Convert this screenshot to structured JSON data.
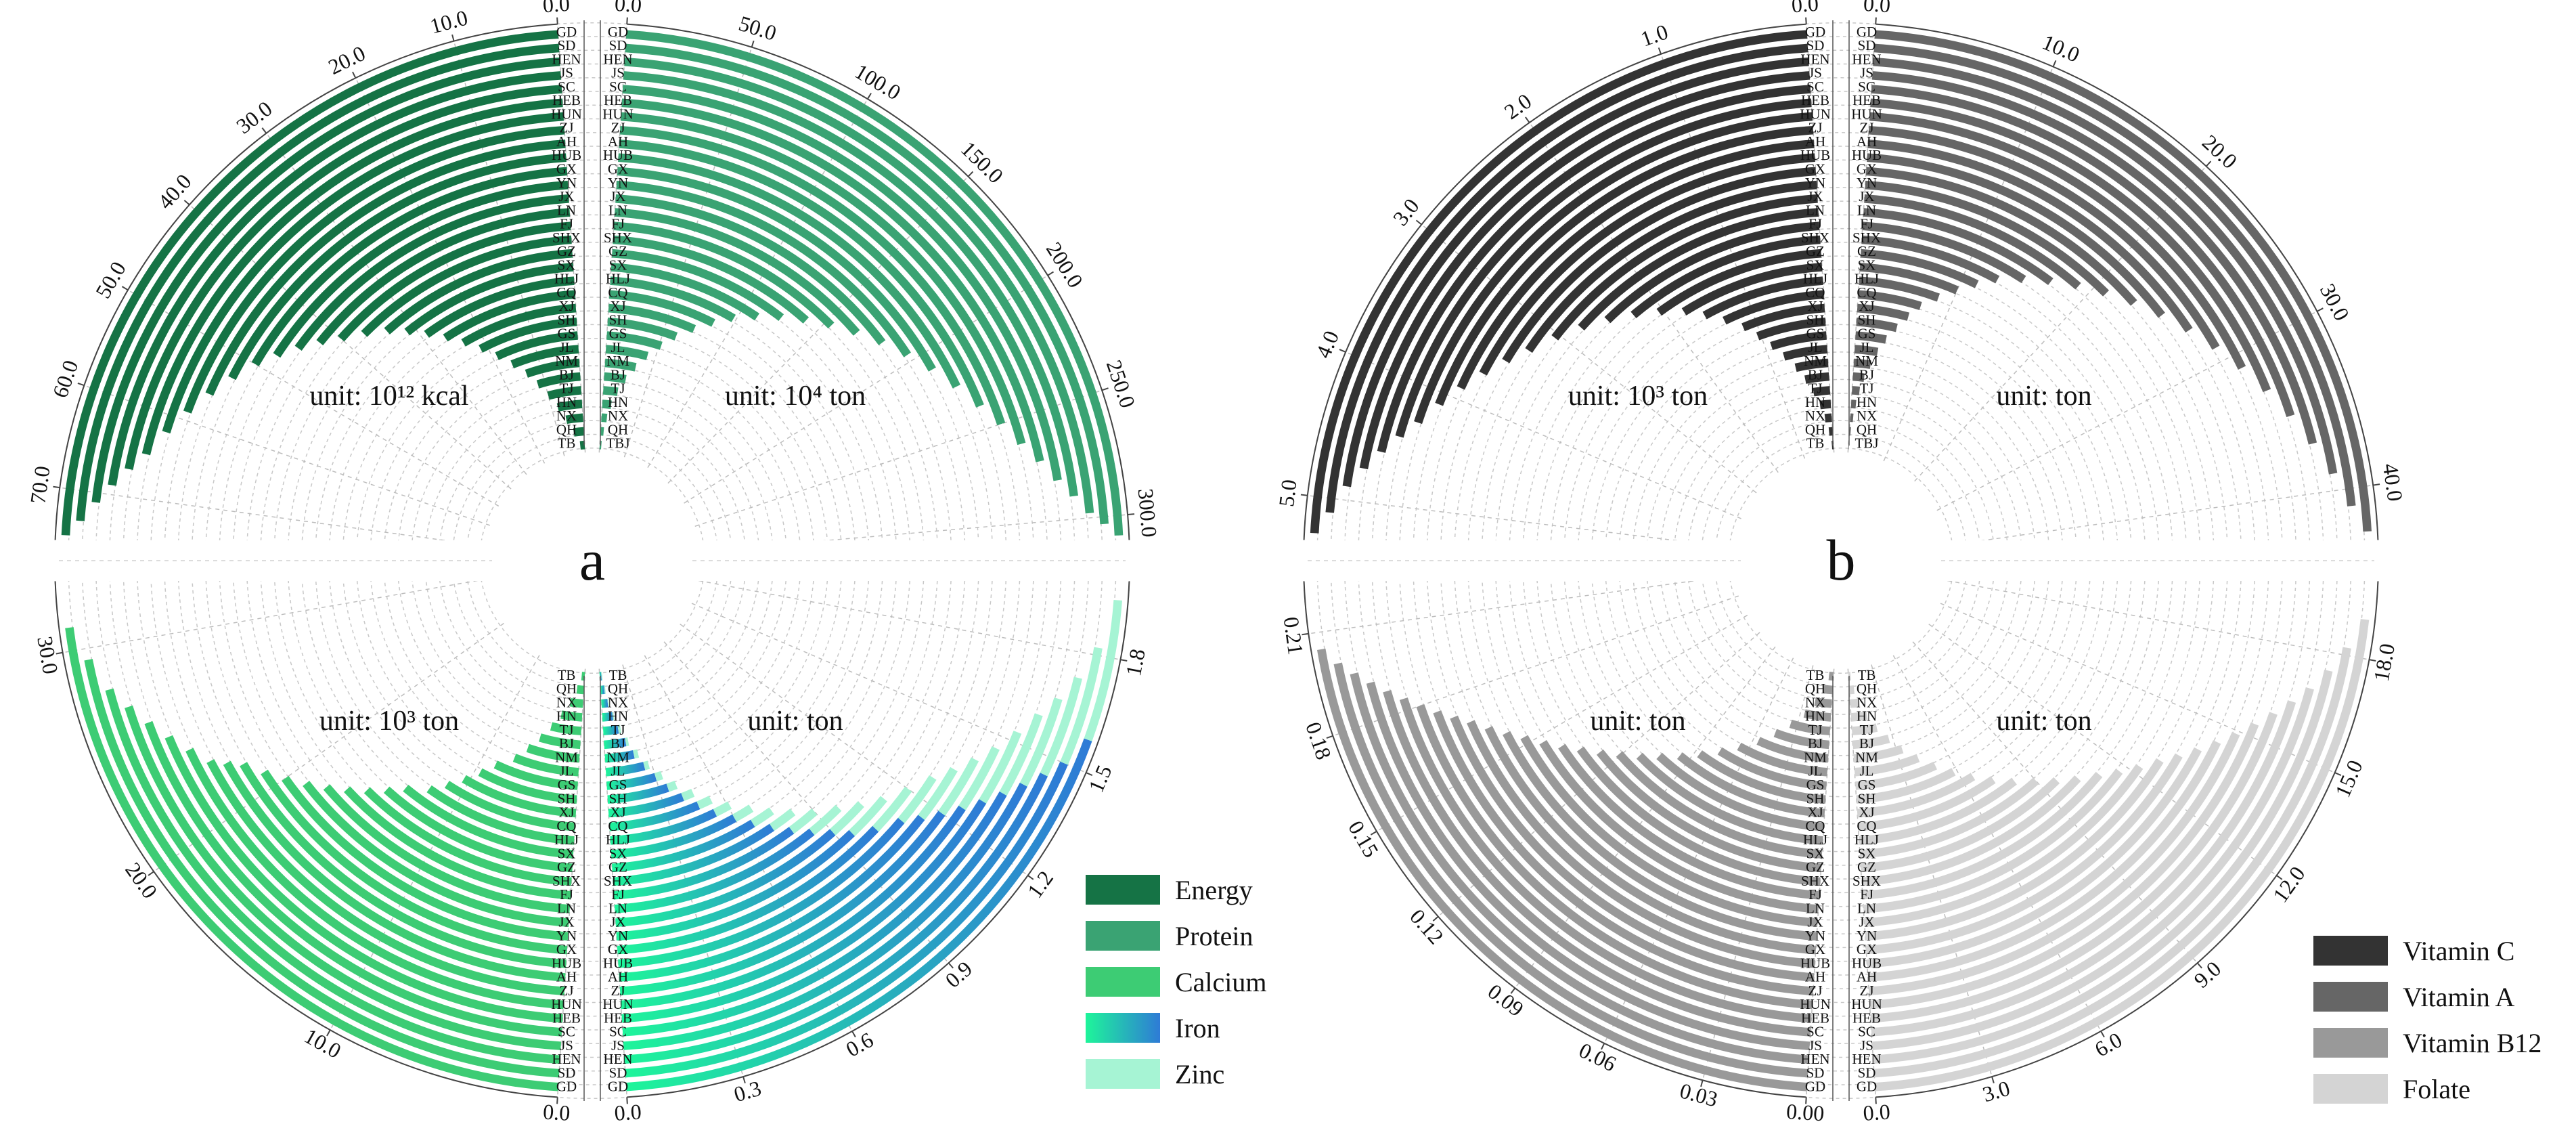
{
  "chart_data": [
    {
      "id": "a",
      "type": "radial-bar",
      "panel_label": "a",
      "provinces": [
        "GD",
        "SD",
        "HEN",
        "JS",
        "SC",
        "HEB",
        "HUN",
        "ZJ",
        "AH",
        "HUB",
        "GX",
        "YN",
        "JX",
        "LN",
        "FJ",
        "SHX",
        "GZ",
        "SX",
        "HLJ",
        "CQ",
        "XJ",
        "SH",
        "GS",
        "JL",
        "NM",
        "BJ",
        "TJ",
        "HN",
        "NX",
        "QH",
        "TB"
      ],
      "provinces_right_upper": [
        "GD",
        "SD",
        "HEN",
        "JS",
        "SC",
        "HEB",
        "HUN",
        "ZJ",
        "AH",
        "HUB",
        "GX",
        "YN",
        "JX",
        "LN",
        "FJ",
        "SHX",
        "GZ",
        "SX",
        "HLJ",
        "CQ",
        "XJ",
        "SH",
        "GS",
        "JL",
        "NM",
        "BJ",
        "TJ",
        "HN",
        "NX",
        "QH",
        "TBJ"
      ],
      "quadrants": [
        {
          "position": "upper-left",
          "nutrient": "Energy",
          "unit": "unit: 10¹² kcal",
          "color": "#157345",
          "max": 75,
          "ticks": [
            "0.0",
            "10.0",
            "20.0",
            "30.0",
            "40.0",
            "50.0",
            "60.0",
            "70.0"
          ],
          "tick_values": [
            0,
            10,
            20,
            30,
            40,
            50,
            60,
            70
          ],
          "values": [
            74.5,
            73,
            71,
            69,
            67,
            65,
            62,
            59,
            56,
            53,
            50,
            47.5,
            45,
            42.5,
            40,
            37,
            34,
            31.5,
            29,
            26.5,
            24,
            21.5,
            19,
            16.5,
            14,
            12,
            10,
            8,
            6,
            4,
            2
          ]
        },
        {
          "position": "upper-right",
          "nutrient": "Protein",
          "unit": "unit: 10⁴ ton",
          "color": "#3aa373",
          "max": 310,
          "ticks": [
            "0.0",
            "50.0",
            "100.0",
            "150.0",
            "200.0",
            "250.0",
            "300.0"
          ],
          "tick_values": [
            0,
            50,
            100,
            150,
            200,
            250,
            300
          ],
          "values": [
            308,
            303,
            298,
            290,
            282,
            272,
            262,
            250,
            238,
            224,
            210,
            196,
            182,
            168,
            154,
            140,
            126,
            112,
            98,
            86,
            74,
            62,
            52,
            42,
            33,
            25,
            18,
            12,
            8,
            5,
            3
          ]
        },
        {
          "position": "lower-left",
          "nutrient": "Calcium",
          "unit": "unit: 10³ ton",
          "color": "#3dcc74",
          "max": 33,
          "ticks": [
            "0.0",
            "10.0",
            "20.0",
            "30.0"
          ],
          "tick_values": [
            0,
            10,
            20,
            30
          ],
          "values": [
            31,
            29.5,
            28,
            27,
            26,
            25,
            24,
            23,
            22.5,
            22,
            21,
            20,
            19,
            18,
            17,
            16,
            15,
            14,
            12.5,
            11.5,
            10.5,
            9.5,
            8.5,
            7,
            6,
            5,
            4,
            3,
            2,
            1.2,
            0.6
          ]
        },
        {
          "position": "lower-right",
          "nutrient": "Iron",
          "unit": "unit: ton",
          "color": "#2e7bd6",
          "max": 2.0,
          "ticks": [
            "0.0",
            "0.3",
            "0.6",
            "0.9",
            "1.2",
            "1.5",
            "1.8"
          ],
          "tick_values": [
            0,
            0.3,
            0.6,
            0.9,
            1.2,
            1.5,
            1.8
          ],
          "values": [
            1.58,
            1.5,
            1.45,
            1.4,
            1.35,
            1.3,
            1.25,
            1.2,
            1.15,
            1.1,
            1.02,
            0.95,
            0.9,
            0.84,
            0.78,
            0.72,
            0.66,
            0.6,
            0.53,
            0.47,
            0.41,
            0.35,
            0.3,
            0.25,
            0.2,
            0.16,
            0.12,
            0.09,
            0.06,
            0.04,
            0.02
          ],
          "overlay": {
            "nutrient": "Zinc",
            "color": "#a6f4d4",
            "values": [
              1.95,
              1.82,
              1.73,
              1.66,
              1.6,
              1.53,
              1.46,
              1.4,
              1.34,
              1.28,
              1.2,
              1.12,
              1.05,
              0.98,
              0.9,
              0.83,
              0.76,
              0.69,
              0.61,
              0.54,
              0.47,
              0.4,
              0.34,
              0.28,
              0.23,
              0.18,
              0.14,
              0.1,
              0.07,
              0.05,
              0.03
            ]
          }
        }
      ],
      "legend": [
        {
          "label": "Energy",
          "color": "#157345"
        },
        {
          "label": "Protein",
          "color": "#3aa373"
        },
        {
          "label": "Calcium",
          "color": "#3dcc74"
        },
        {
          "label": "Iron",
          "color": "#2e7bd6",
          "gradient_from": "#1ef59a"
        },
        {
          "label": "Zinc",
          "color": "#a6f4d4"
        }
      ]
    },
    {
      "id": "b",
      "type": "radial-bar",
      "panel_label": "b",
      "provinces": [
        "GD",
        "SD",
        "HEN",
        "JS",
        "SC",
        "HEB",
        "HUN",
        "ZJ",
        "AH",
        "HUB",
        "GX",
        "YN",
        "JX",
        "LN",
        "FJ",
        "SHX",
        "GZ",
        "SX",
        "HLJ",
        "CQ",
        "XJ",
        "SH",
        "GS",
        "JL",
        "NM",
        "BJ",
        "TJ",
        "HN",
        "NX",
        "QH",
        "TB"
      ],
      "provinces_right_upper": [
        "GD",
        "SD",
        "HEN",
        "JS",
        "SC",
        "HEB",
        "HUN",
        "ZJ",
        "AH",
        "HUB",
        "GX",
        "YN",
        "JX",
        "LN",
        "FJ",
        "SHX",
        "GZ",
        "SX",
        "HLJ",
        "CQ",
        "XJ",
        "SH",
        "GS",
        "JL",
        "NM",
        "BJ",
        "TJ",
        "HN",
        "NX",
        "QH",
        "TBJ"
      ],
      "quadrants": [
        {
          "position": "upper-left",
          "nutrient": "Vitamin C",
          "unit": "unit: 10³ ton",
          "color": "#333333",
          "max": 5.3,
          "ticks": [
            "0.0",
            "1.0",
            "2.0",
            "3.0",
            "4.0",
            "5.0"
          ],
          "tick_values": [
            0,
            1,
            2,
            3,
            4,
            5
          ],
          "values": [
            5.25,
            5.1,
            4.9,
            4.75,
            4.6,
            4.45,
            4.3,
            4.1,
            3.9,
            3.7,
            3.5,
            3.3,
            3.05,
            2.8,
            2.55,
            2.3,
            2.05,
            1.8,
            1.6,
            1.4,
            1.2,
            1.05,
            0.9,
            0.75,
            0.6,
            0.47,
            0.35,
            0.25,
            0.17,
            0.1,
            0.05
          ]
        },
        {
          "position": "upper-right",
          "nutrient": "Vitamin A",
          "unit": "unit: ton",
          "color": "#666666",
          "max": 43,
          "ticks": [
            "0.0",
            "10.0",
            "20.0",
            "30.0",
            "40.0"
          ],
          "tick_values": [
            0,
            10,
            20,
            30,
            40
          ],
          "values": [
            42.5,
            41,
            39,
            37,
            35,
            33,
            31,
            29,
            27,
            25,
            23,
            21,
            19,
            17,
            15,
            13,
            11.5,
            10,
            8.5,
            7,
            6,
            5,
            4,
            3.2,
            2.5,
            1.8,
            1.3,
            0.9,
            0.6,
            0.3,
            0.15
          ]
        },
        {
          "position": "lower-left",
          "nutrient": "Vitamin B12",
          "unit": "unit: ton",
          "color": "#999999",
          "max": 0.225,
          "ticks": [
            "0.00",
            "0.03",
            "0.06",
            "0.09",
            "0.12",
            "0.15",
            "0.18",
            "0.21"
          ],
          "tick_values": [
            0,
            0.03,
            0.06,
            0.09,
            0.12,
            0.15,
            0.18,
            0.21
          ],
          "values": [
            0.205,
            0.2,
            0.196,
            0.192,
            0.188,
            0.184,
            0.18,
            0.176,
            0.172,
            0.168,
            0.163,
            0.158,
            0.153,
            0.147,
            0.141,
            0.135,
            0.128,
            0.121,
            0.113,
            0.105,
            0.096,
            0.087,
            0.077,
            0.067,
            0.056,
            0.046,
            0.036,
            0.026,
            0.018,
            0.011,
            0.006
          ]
        },
        {
          "position": "lower-right",
          "nutrient": "Folate",
          "unit": "unit: ton",
          "color": "#d4d4d4",
          "max": 20,
          "ticks": [
            "0.0",
            "3.0",
            "6.0",
            "9.0",
            "12.0",
            "15.0",
            "18.0"
          ],
          "tick_values": [
            0,
            3,
            6,
            9,
            12,
            15,
            18
          ],
          "values": [
            19,
            18.2,
            17.5,
            16.9,
            16.4,
            15.9,
            15.4,
            14.9,
            14.4,
            13.9,
            13.4,
            12.9,
            12.3,
            11.7,
            11.1,
            10.4,
            9.7,
            9,
            8.2,
            7.4,
            6.6,
            5.8,
            5,
            4.2,
            3.4,
            2.7,
            2,
            1.4,
            0.9,
            0.5,
            0.25
          ]
        }
      ],
      "legend": [
        {
          "label": "Vitamin C",
          "color": "#333333"
        },
        {
          "label": "Vitamin A",
          "color": "#666666"
        },
        {
          "label": "Vitamin B12",
          "color": "#999999"
        },
        {
          "label": "Folate",
          "color": "#d4d4d4"
        }
      ]
    }
  ]
}
